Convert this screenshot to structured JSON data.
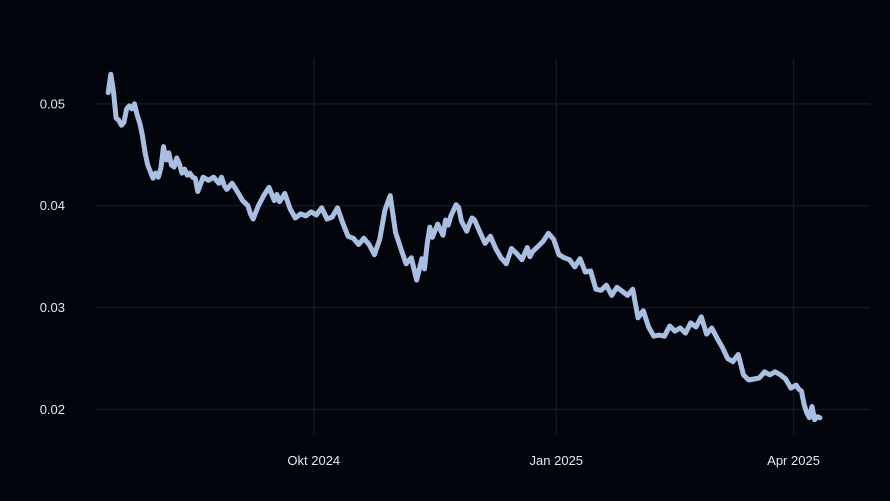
{
  "colors": {
    "background": "#03050d",
    "grid": "#141a2c",
    "line": "#a9bfe2",
    "text": "#e4e6ee"
  },
  "chart_data": {
    "type": "line",
    "title": "",
    "xlabel": "",
    "ylabel": "",
    "grid": true,
    "legend": "none",
    "xlim": [
      "2024-07-10",
      "2025-04-30"
    ],
    "ylim": [
      0.0175,
      0.0545
    ],
    "x_ticks": [
      {
        "date": "2024-10-01",
        "label": "Okt 2024"
      },
      {
        "date": "2025-01-01",
        "label": "Jan 2025"
      },
      {
        "date": "2025-04-01",
        "label": "Apr 2025"
      }
    ],
    "y_ticks": [
      {
        "value": 0.02,
        "label": "0.02"
      },
      {
        "value": 0.03,
        "label": "0.03"
      },
      {
        "value": 0.04,
        "label": "0.04"
      },
      {
        "value": 0.05,
        "label": "0.05"
      }
    ],
    "series": [
      {
        "x": [
          "2024-07-15",
          "2024-07-16",
          "2024-07-17",
          "2024-07-18",
          "2024-07-19",
          "2024-07-20",
          "2024-07-21",
          "2024-07-22",
          "2024-07-23",
          "2024-07-24",
          "2024-07-25",
          "2024-07-26",
          "2024-07-27",
          "2024-07-28",
          "2024-07-29",
          "2024-07-30",
          "2024-08-01",
          "2024-08-02",
          "2024-08-03",
          "2024-08-04",
          "2024-08-05",
          "2024-08-06",
          "2024-08-07",
          "2024-08-08",
          "2024-08-09",
          "2024-08-10",
          "2024-08-11",
          "2024-08-12",
          "2024-08-13",
          "2024-08-14",
          "2024-08-15",
          "2024-08-16",
          "2024-08-17",
          "2024-08-18",
          "2024-08-20",
          "2024-08-22",
          "2024-08-24",
          "2024-08-26",
          "2024-08-27",
          "2024-08-28",
          "2024-08-29",
          "2024-08-31",
          "2024-09-02",
          "2024-09-04",
          "2024-09-06",
          "2024-09-07",
          "2024-09-08",
          "2024-09-10",
          "2024-09-12",
          "2024-09-14",
          "2024-09-16",
          "2024-09-17",
          "2024-09-18",
          "2024-09-20",
          "2024-09-22",
          "2024-09-24",
          "2024-09-26",
          "2024-09-28",
          "2024-09-30",
          "2024-10-02",
          "2024-10-04",
          "2024-10-06",
          "2024-10-08",
          "2024-10-10",
          "2024-10-12",
          "2024-10-14",
          "2024-10-16",
          "2024-10-18",
          "2024-10-20",
          "2024-10-22",
          "2024-10-24",
          "2024-10-26",
          "2024-10-28",
          "2024-10-30",
          "2024-11-01",
          "2024-11-03",
          "2024-11-05",
          "2024-11-07",
          "2024-11-09",
          "2024-11-11",
          "2024-11-12",
          "2024-11-13",
          "2024-11-14",
          "2024-11-15",
          "2024-11-17",
          "2024-11-19",
          "2024-11-20",
          "2024-11-21",
          "2024-11-22",
          "2024-11-24",
          "2024-11-25",
          "2024-11-26",
          "2024-11-28",
          "2024-11-29",
          "2024-11-30",
          "2024-12-01",
          "2024-12-03",
          "2024-12-05",
          "2024-12-07",
          "2024-12-09",
          "2024-12-11",
          "2024-12-13",
          "2024-12-15",
          "2024-12-17",
          "2024-12-19",
          "2024-12-21",
          "2024-12-22",
          "2024-12-23",
          "2024-12-25",
          "2024-12-27",
          "2024-12-29",
          "2024-12-31",
          "2025-01-02",
          "2025-01-04",
          "2025-01-06",
          "2025-01-08",
          "2025-01-10",
          "2025-01-12",
          "2025-01-14",
          "2025-01-16",
          "2025-01-18",
          "2025-01-20",
          "2025-01-22",
          "2025-01-24",
          "2025-01-26",
          "2025-01-28",
          "2025-01-30",
          "2025-02-01",
          "2025-02-03",
          "2025-02-05",
          "2025-02-07",
          "2025-02-09",
          "2025-02-11",
          "2025-02-13",
          "2025-02-15",
          "2025-02-17",
          "2025-02-19",
          "2025-02-21",
          "2025-02-23",
          "2025-02-25",
          "2025-02-27",
          "2025-03-01",
          "2025-03-03",
          "2025-03-05",
          "2025-03-07",
          "2025-03-09",
          "2025-03-11",
          "2025-03-13",
          "2025-03-15",
          "2025-03-17",
          "2025-03-19",
          "2025-03-21",
          "2025-03-23",
          "2025-03-25",
          "2025-03-27",
          "2025-03-29",
          "2025-03-31",
          "2025-04-02",
          "2025-04-03",
          "2025-04-04",
          "2025-04-05",
          "2025-04-06",
          "2025-04-07",
          "2025-04-08",
          "2025-04-09",
          "2025-04-10",
          "2025-04-11"
        ],
        "values": [
          0.0511,
          0.0529,
          0.0512,
          0.0486,
          0.0484,
          0.0479,
          0.0482,
          0.0495,
          0.0498,
          0.0495,
          0.05,
          0.0489,
          0.0481,
          0.0469,
          0.0452,
          0.044,
          0.0427,
          0.0432,
          0.0428,
          0.0437,
          0.0458,
          0.0445,
          0.0452,
          0.044,
          0.0438,
          0.0447,
          0.0441,
          0.0432,
          0.0436,
          0.043,
          0.0432,
          0.0428,
          0.0427,
          0.0414,
          0.0428,
          0.0425,
          0.0428,
          0.0422,
          0.0428,
          0.042,
          0.0416,
          0.0422,
          0.0414,
          0.0405,
          0.04,
          0.0392,
          0.0387,
          0.04,
          0.041,
          0.0418,
          0.0405,
          0.0411,
          0.0404,
          0.0412,
          0.0397,
          0.0388,
          0.0392,
          0.039,
          0.0394,
          0.0391,
          0.0398,
          0.0387,
          0.0389,
          0.0398,
          0.0383,
          0.037,
          0.0368,
          0.0362,
          0.0368,
          0.0362,
          0.0352,
          0.0367,
          0.0396,
          0.041,
          0.0374,
          0.0358,
          0.0343,
          0.0349,
          0.0327,
          0.0348,
          0.0338,
          0.0362,
          0.0379,
          0.0369,
          0.0382,
          0.0371,
          0.0386,
          0.0381,
          0.039,
          0.0401,
          0.0398,
          0.0385,
          0.0375,
          0.0382,
          0.0388,
          0.0386,
          0.0374,
          0.0363,
          0.037,
          0.0358,
          0.0349,
          0.0343,
          0.0358,
          0.0353,
          0.0347,
          0.0359,
          0.035,
          0.0355,
          0.036,
          0.0365,
          0.0373,
          0.0367,
          0.0352,
          0.0349,
          0.0347,
          0.034,
          0.0348,
          0.0335,
          0.0336,
          0.0318,
          0.0317,
          0.0322,
          0.0312,
          0.032,
          0.0316,
          0.0312,
          0.0318,
          0.029,
          0.0297,
          0.0281,
          0.0272,
          0.0273,
          0.0272,
          0.0282,
          0.0277,
          0.028,
          0.0275,
          0.0285,
          0.0281,
          0.0291,
          0.0274,
          0.028,
          0.027,
          0.0261,
          0.025,
          0.0247,
          0.0254,
          0.0234,
          0.0229,
          0.023,
          0.0231,
          0.0237,
          0.0234,
          0.0237,
          0.0234,
          0.023,
          0.0221,
          0.0224,
          0.022,
          0.0218,
          0.0205,
          0.0197,
          0.0192,
          0.0203,
          0.019,
          0.0193,
          0.0192
        ]
      }
    ]
  }
}
